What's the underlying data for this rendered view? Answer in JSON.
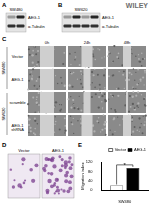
{
  "publisher": "WILEY",
  "panels": {
    "A": {
      "label": "A",
      "cell_line": "SW480",
      "rows": [
        "AEG-1",
        "α-Tubulin"
      ]
    },
    "B": {
      "label": "B",
      "cell_line": "SW620",
      "rows": [
        "AEG-1",
        "α-Tubulin"
      ]
    },
    "C": {
      "label": "C",
      "columns": [
        "0h",
        "24h",
        "48h"
      ],
      "groups": [
        {
          "cell_line": "SW480",
          "rows": [
            "Vector",
            "AEG-1"
          ]
        },
        {
          "cell_line": "SW620",
          "rows": [
            "scramble",
            "AEG-1 shRNA"
          ]
        }
      ]
    },
    "D": {
      "label": "D",
      "columns": [
        "Vector",
        "AEG-1"
      ]
    },
    "E": {
      "label": "E"
    }
  },
  "chart_data": {
    "type": "bar",
    "categories": [
      "SW480"
    ],
    "series": [
      {
        "name": "Vector",
        "color": "#ffffff",
        "values": [
          20
        ]
      },
      {
        "name": "AEG-1",
        "color": "#000000",
        "values": [
          95
        ]
      }
    ],
    "y_label": "Migration index",
    "ylim": [
      0,
      120
    ],
    "yticks": [
      0,
      40,
      80,
      120
    ],
    "grid": false,
    "legend": "top-right",
    "annotations": [
      {
        "text": "*"
      }
    ]
  }
}
